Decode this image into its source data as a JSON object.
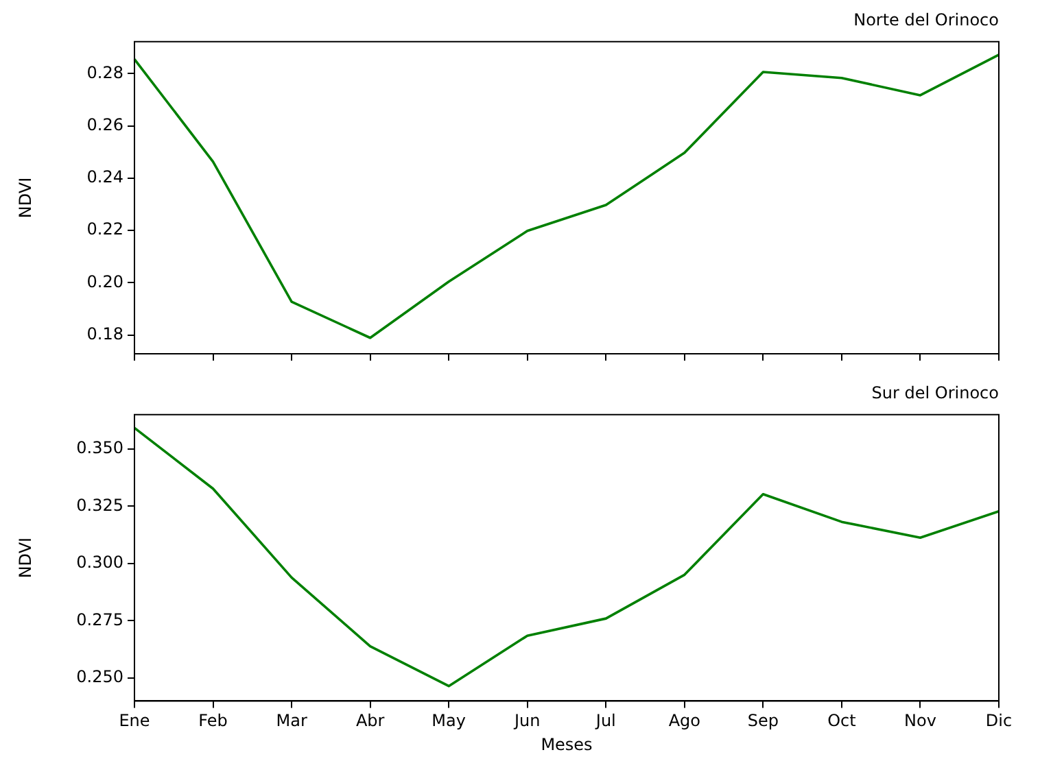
{
  "chart_data": [
    {
      "type": "line",
      "title": "Norte del Orinoco",
      "ylabel": "NDVI",
      "categories": [
        null,
        null,
        null,
        null,
        null,
        null,
        null,
        null,
        null,
        null,
        null,
        null
      ],
      "series": [
        {
          "color": "#008000",
          "values": [
            0.2855,
            0.2463,
            0.1927,
            0.1789,
            0.2004,
            0.2198,
            0.2297,
            0.2497,
            0.2806,
            0.2783,
            0.2717,
            0.2872
          ]
        }
      ],
      "ylim": [
        0.1728,
        0.2922
      ],
      "yticks": [
        0.18,
        {
          "value": 0.2,
          "label": "0.20"
        },
        0.22,
        0.24,
        0.26,
        0.28
      ],
      "tick_labels": "y",
      "marker": "none",
      "legend": false
    },
    {
      "type": "line",
      "title": "Sur del Orinoco",
      "xlabel": "Meses",
      "ylabel": "NDVI",
      "categories": [
        "Ene",
        "Feb",
        "Mar",
        "Abr",
        "May",
        "Jun",
        "Jul",
        "Ago",
        "Sep",
        "Oct",
        "Nov",
        "Dic"
      ],
      "series": [
        {
          "color": "#008000",
          "values": [
            0.3592,
            0.3327,
            0.2939,
            0.2639,
            0.2465,
            0.2685,
            0.276,
            0.2951,
            0.3303,
            0.3182,
            0.3113,
            0.3228
          ]
        }
      ],
      "ylim": [
        0.24,
        0.365
      ],
      "yticks": [
        {
          "value": 0.25,
          "label": "0.250"
        },
        0.275,
        {
          "value": 0.3,
          "label": "0.300"
        },
        0.325,
        {
          "value": 0.35,
          "label": "0.350"
        }
      ],
      "marker": "none",
      "legend": false
    }
  ]
}
